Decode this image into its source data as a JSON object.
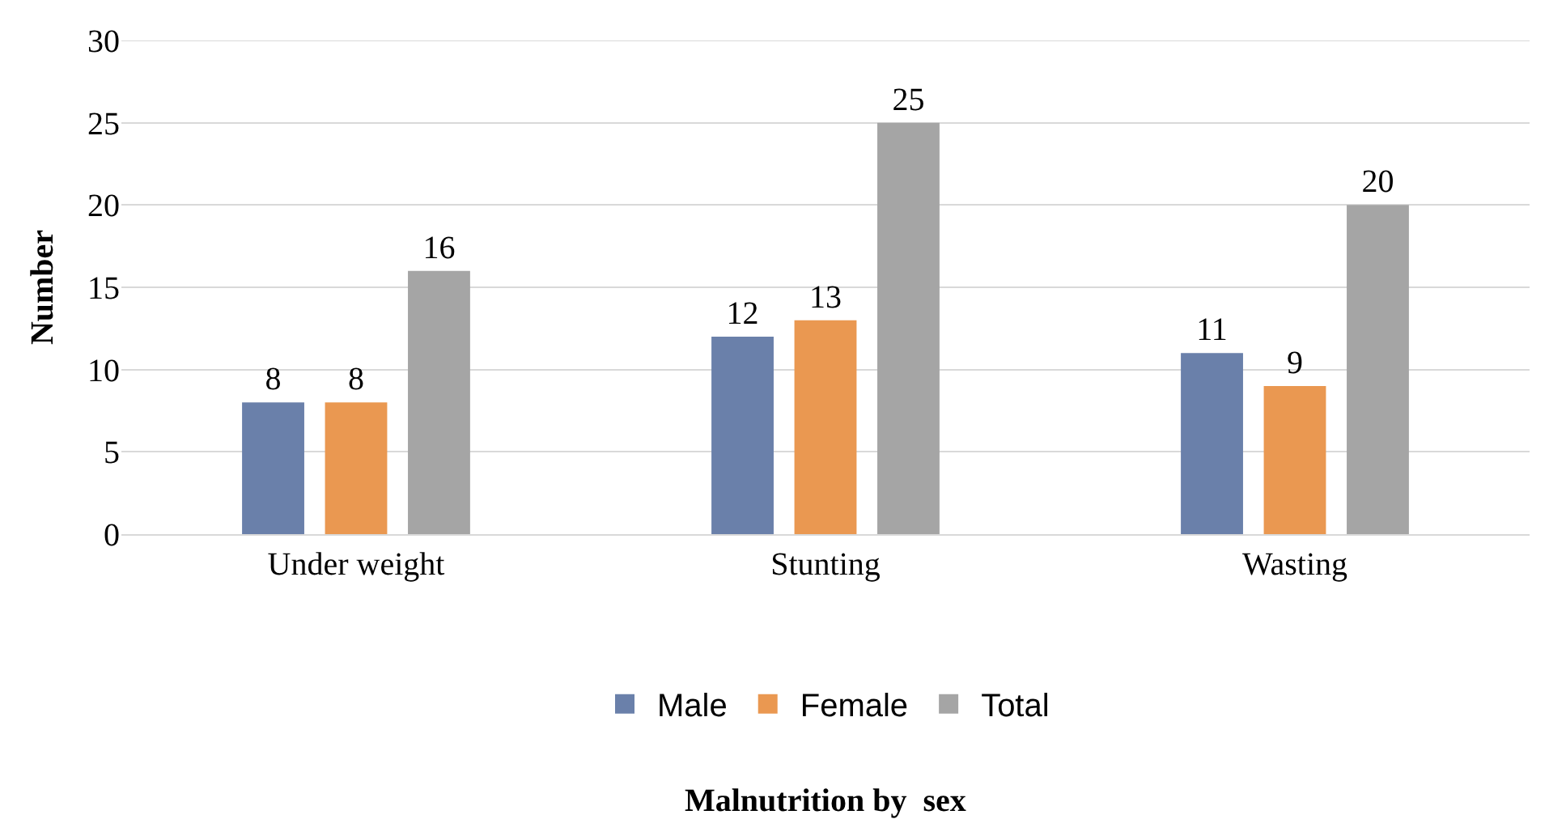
{
  "chart_data": {
    "type": "bar",
    "annotations": [
      "Malnutrition by  sex"
    ],
    "ylabel": "Number",
    "categories": [
      "Under weight",
      "Stunting",
      "Wasting"
    ],
    "series": [
      {
        "name": "Male",
        "color": "#6a80aa",
        "values": [
          8,
          12,
          11
        ]
      },
      {
        "name": "Female",
        "color": "#ea9851",
        "values": [
          8,
          13,
          9
        ]
      },
      {
        "name": "Total",
        "color": "#a5a5a5",
        "values": [
          16,
          25,
          20
        ]
      }
    ],
    "ylim": [
      0,
      30
    ],
    "yticks": [
      0,
      5,
      10,
      15,
      20,
      25,
      30
    ],
    "grid": "y",
    "legend": "bottom",
    "data_labels": true
  }
}
